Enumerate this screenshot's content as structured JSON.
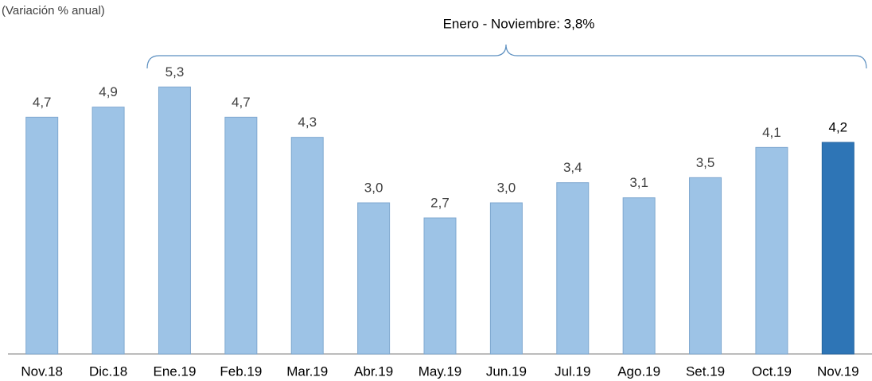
{
  "chart_data": {
    "type": "bar",
    "subtitle": "(Variación % anual)",
    "annotation": "Enero - Noviembre: 3,8%",
    "categories": [
      "Nov.18",
      "Dic.18",
      "Ene.19",
      "Feb.19",
      "Mar.19",
      "Abr.19",
      "May.19",
      "Jun.19",
      "Jul.19",
      "Ago.19",
      "Set.19",
      "Oct.19",
      "Nov.19"
    ],
    "values": [
      4.7,
      4.9,
      5.3,
      4.7,
      4.3,
      3.0,
      2.7,
      3.0,
      3.4,
      3.1,
      3.5,
      4.1,
      4.2
    ],
    "value_labels": [
      "4,7",
      "4,9",
      "5,3",
      "4,7",
      "4,3",
      "3,0",
      "2,7",
      "3,0",
      "3,4",
      "3,1",
      "3,5",
      "4,1",
      "4,2"
    ],
    "colors": [
      "#9dc3e6",
      "#9dc3e6",
      "#9dc3e6",
      "#9dc3e6",
      "#9dc3e6",
      "#9dc3e6",
      "#9dc3e6",
      "#9dc3e6",
      "#9dc3e6",
      "#9dc3e6",
      "#9dc3e6",
      "#9dc3e6",
      "#2e75b6"
    ],
    "ylim": [
      0,
      6
    ]
  }
}
